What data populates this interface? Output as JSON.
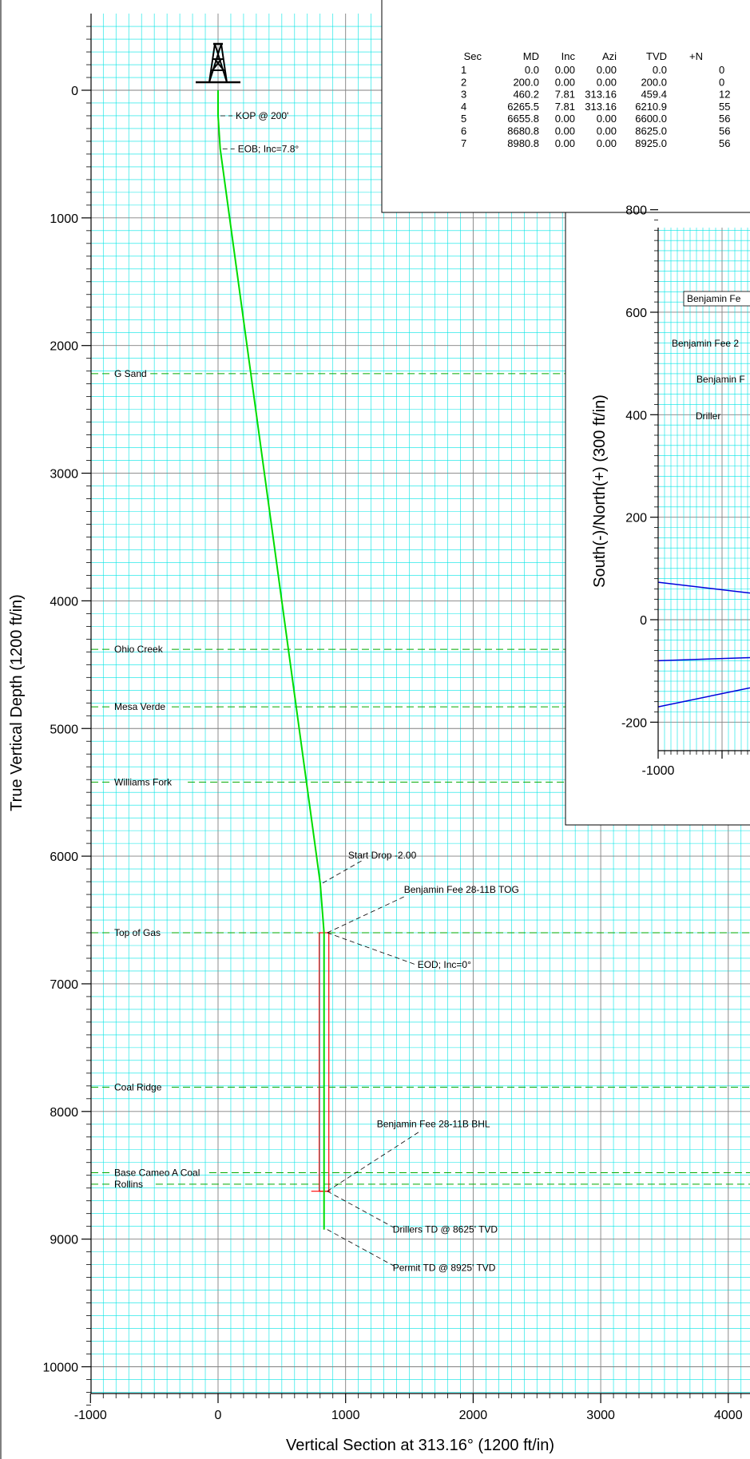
{
  "chart_data": [
    {
      "type": "line",
      "title": "",
      "xlabel": "Vertical Section at 313.16° (1200 ft/in)",
      "ylabel": "True Vertical Depth (1200 ft/in)",
      "xlim": [
        -1000,
        4200
      ],
      "ylim": [
        -600,
        10300
      ],
      "y_inverted": true,
      "grid": true,
      "x_ticks": [
        "-1000",
        "0",
        "1000",
        "2000",
        "3000",
        "4000"
      ],
      "y_ticks": [
        "0",
        "1000",
        "2000",
        "3000",
        "4000",
        "5000",
        "6000",
        "7000",
        "8000",
        "9000",
        "10000"
      ],
      "series": [
        {
          "color": "#00dd00",
          "x": [
            0,
            0,
            17,
            801,
            831,
            831,
            831
          ],
          "y": [
            0,
            200,
            459.4,
            6210.9,
            6600.0,
            8625.0,
            8925.0
          ]
        }
      ],
      "formations": [
        {
          "name": "G Sand",
          "tvd": 2220
        },
        {
          "name": "Ohio Creek",
          "tvd": 4380
        },
        {
          "name": "Mesa Verde",
          "tvd": 4830
        },
        {
          "name": "Williams Fork",
          "tvd": 5420
        },
        {
          "name": "Top of Gas",
          "tvd": 6600
        },
        {
          "name": "Coal Ridge",
          "tvd": 7810
        },
        {
          "name": "Base Cameo A Coal",
          "tvd": 8480
        },
        {
          "name": "Rollins",
          "tvd": 8570
        }
      ],
      "annotations": [
        {
          "text": "KOP @ 200'"
        },
        {
          "text": "EOB; Inc=7.8°"
        },
        {
          "text": "Start Drop -2.00"
        },
        {
          "text": "Benjamin Fee 28-11B TOG"
        },
        {
          "text": "EOD; Inc=0°"
        },
        {
          "text": "Benjamin Fee 28-11B BHL"
        },
        {
          "text": "Drillers TD @ 8625' TVD"
        },
        {
          "text": "Permit TD @ 8925' TVD"
        }
      ],
      "target_colors": {
        "box": "#ff0000",
        "formation_line": "#00aa00",
        "grid_minor": "#00e5e5",
        "grid_major": "#808080"
      }
    },
    {
      "type": "line",
      "title": "",
      "xlabel": "",
      "ylabel": "South(-)/North(+) (300 ft/in)",
      "ylim": [
        -200,
        800
      ],
      "y_ticks": [
        "800",
        "600",
        "400",
        "200",
        "0",
        "-200"
      ],
      "x_ticks": [
        "-1000"
      ],
      "labels": [
        "Benjamin Fe",
        "Benjamin Fee 2",
        "Benjamin F",
        "Driller"
      ],
      "series_color": "#0000dd"
    },
    {
      "type": "table",
      "columns": [
        "Sec",
        "MD",
        "Inc",
        "Azi",
        "TVD",
        "+N"
      ],
      "rows": [
        [
          "1",
          "0.0",
          "0.00",
          "0.00",
          "0.0",
          "0"
        ],
        [
          "2",
          "200.0",
          "0.00",
          "0.00",
          "200.0",
          "0"
        ],
        [
          "3",
          "460.2",
          "7.81",
          "313.16",
          "459.4",
          "12"
        ],
        [
          "4",
          "6265.5",
          "7.81",
          "313.16",
          "6210.9",
          "55"
        ],
        [
          "5",
          "6655.8",
          "0.00",
          "0.00",
          "6600.0",
          "56"
        ],
        [
          "6",
          "8680.8",
          "0.00",
          "0.00",
          "8625.0",
          "56"
        ],
        [
          "7",
          "8980.8",
          "0.00",
          "0.00",
          "8925.0",
          "56"
        ]
      ]
    }
  ]
}
